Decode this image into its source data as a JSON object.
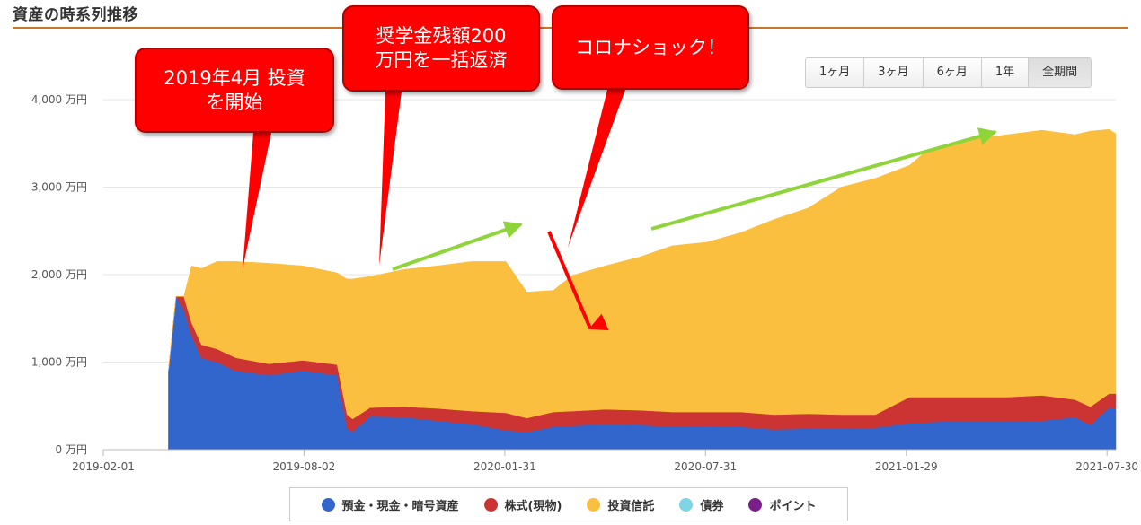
{
  "section_title": "資産の時系列推移",
  "range_buttons": [
    {
      "label": "1ヶ月",
      "active": false
    },
    {
      "label": "3ヶ月",
      "active": false
    },
    {
      "label": "6ヶ月",
      "active": false
    },
    {
      "label": "1年",
      "active": false
    },
    {
      "label": "全期間",
      "active": true
    }
  ],
  "callouts": {
    "start_investing": "2019年4月 投資\nを開始",
    "loan_repaid": "奨学金残額200\n万円を一括返済",
    "corona": "コロナショック！"
  },
  "chart_data": {
    "type": "area",
    "stacked": true,
    "y_unit": "万円",
    "ylim": [
      0,
      4000
    ],
    "yticks": [
      0,
      1000,
      2000,
      3000,
      4000
    ],
    "ytick_labels": [
      "0 万円",
      "1,000 万円",
      "2,000 万円",
      "3,000 万円",
      "4,000 万円"
    ],
    "xlim": [
      "2019-02-01",
      "2021-08-07"
    ],
    "xticks": [
      "2019-02-01",
      "2019-08-02",
      "2020-01-31",
      "2020-07-31",
      "2021-01-29",
      "2021-07-30"
    ],
    "grid": true,
    "legend_position": "bottom",
    "x": [
      "2019-04-01",
      "2019-04-08",
      "2019-04-15",
      "2019-04-22",
      "2019-05-01",
      "2019-05-15",
      "2019-06-01",
      "2019-07-01",
      "2019-08-01",
      "2019-09-01",
      "2019-09-10",
      "2019-09-15",
      "2019-10-01",
      "2019-11-01",
      "2019-12-01",
      "2020-01-01",
      "2020-02-01",
      "2020-02-20",
      "2020-03-15",
      "2020-04-01",
      "2020-05-01",
      "2020-06-01",
      "2020-07-01",
      "2020-08-01",
      "2020-09-01",
      "2020-10-01",
      "2020-11-01",
      "2020-12-01",
      "2021-01-01",
      "2021-02-01",
      "2021-02-15",
      "2021-03-01",
      "2021-04-01",
      "2021-05-01",
      "2021-06-01",
      "2021-07-01",
      "2021-07-15",
      "2021-08-01",
      "2021-08-07"
    ],
    "series": [
      {
        "name": "預金・現金・暗号資産",
        "color": "#3366cc",
        "values": [
          900,
          1750,
          1600,
          1300,
          1050,
          1000,
          900,
          850,
          900,
          850,
          250,
          200,
          380,
          370,
          330,
          290,
          220,
          200,
          260,
          270,
          290,
          280,
          260,
          270,
          260,
          230,
          240,
          240,
          250,
          300,
          310,
          320,
          320,
          320,
          330,
          370,
          280,
          480,
          470
        ]
      },
      {
        "name": "株式(現物)",
        "color": "#cc3333",
        "values": [
          0,
          0,
          150,
          150,
          150,
          150,
          150,
          130,
          120,
          120,
          150,
          150,
          100,
          120,
          140,
          150,
          200,
          160,
          170,
          170,
          170,
          170,
          170,
          160,
          170,
          170,
          170,
          160,
          150,
          300,
          290,
          280,
          280,
          280,
          290,
          200,
          210,
          160,
          170
        ]
      },
      {
        "name": "投資信託",
        "color": "#fbbf3f",
        "values": [
          0,
          0,
          0,
          650,
          870,
          1000,
          1100,
          1150,
          1080,
          1050,
          1550,
          1600,
          1500,
          1570,
          1630,
          1710,
          1730,
          1440,
          1390,
          1550,
          1640,
          1750,
          1900,
          1940,
          2050,
          2230,
          2350,
          2600,
          2700,
          2650,
          2800,
          2850,
          2950,
          3000,
          3030,
          3030,
          3150,
          3020,
          2970
        ]
      },
      {
        "name": "債券",
        "color": "#7fd4e6",
        "values": [
          0,
          0,
          0,
          0,
          0,
          0,
          0,
          0,
          0,
          0,
          0,
          0,
          0,
          0,
          0,
          0,
          0,
          0,
          0,
          0,
          0,
          0,
          0,
          0,
          0,
          0,
          0,
          0,
          0,
          0,
          0,
          0,
          0,
          0,
          0,
          0,
          0,
          0,
          0
        ]
      },
      {
        "name": "ポイント",
        "color": "#7b1f8a",
        "values": [
          0,
          0,
          0,
          0,
          0,
          0,
          0,
          0,
          0,
          0,
          0,
          0,
          0,
          0,
          0,
          0,
          0,
          0,
          0,
          0,
          0,
          0,
          0,
          0,
          0,
          0,
          0,
          0,
          0,
          0,
          0,
          0,
          0,
          0,
          0,
          0,
          0,
          0,
          0
        ]
      }
    ]
  }
}
